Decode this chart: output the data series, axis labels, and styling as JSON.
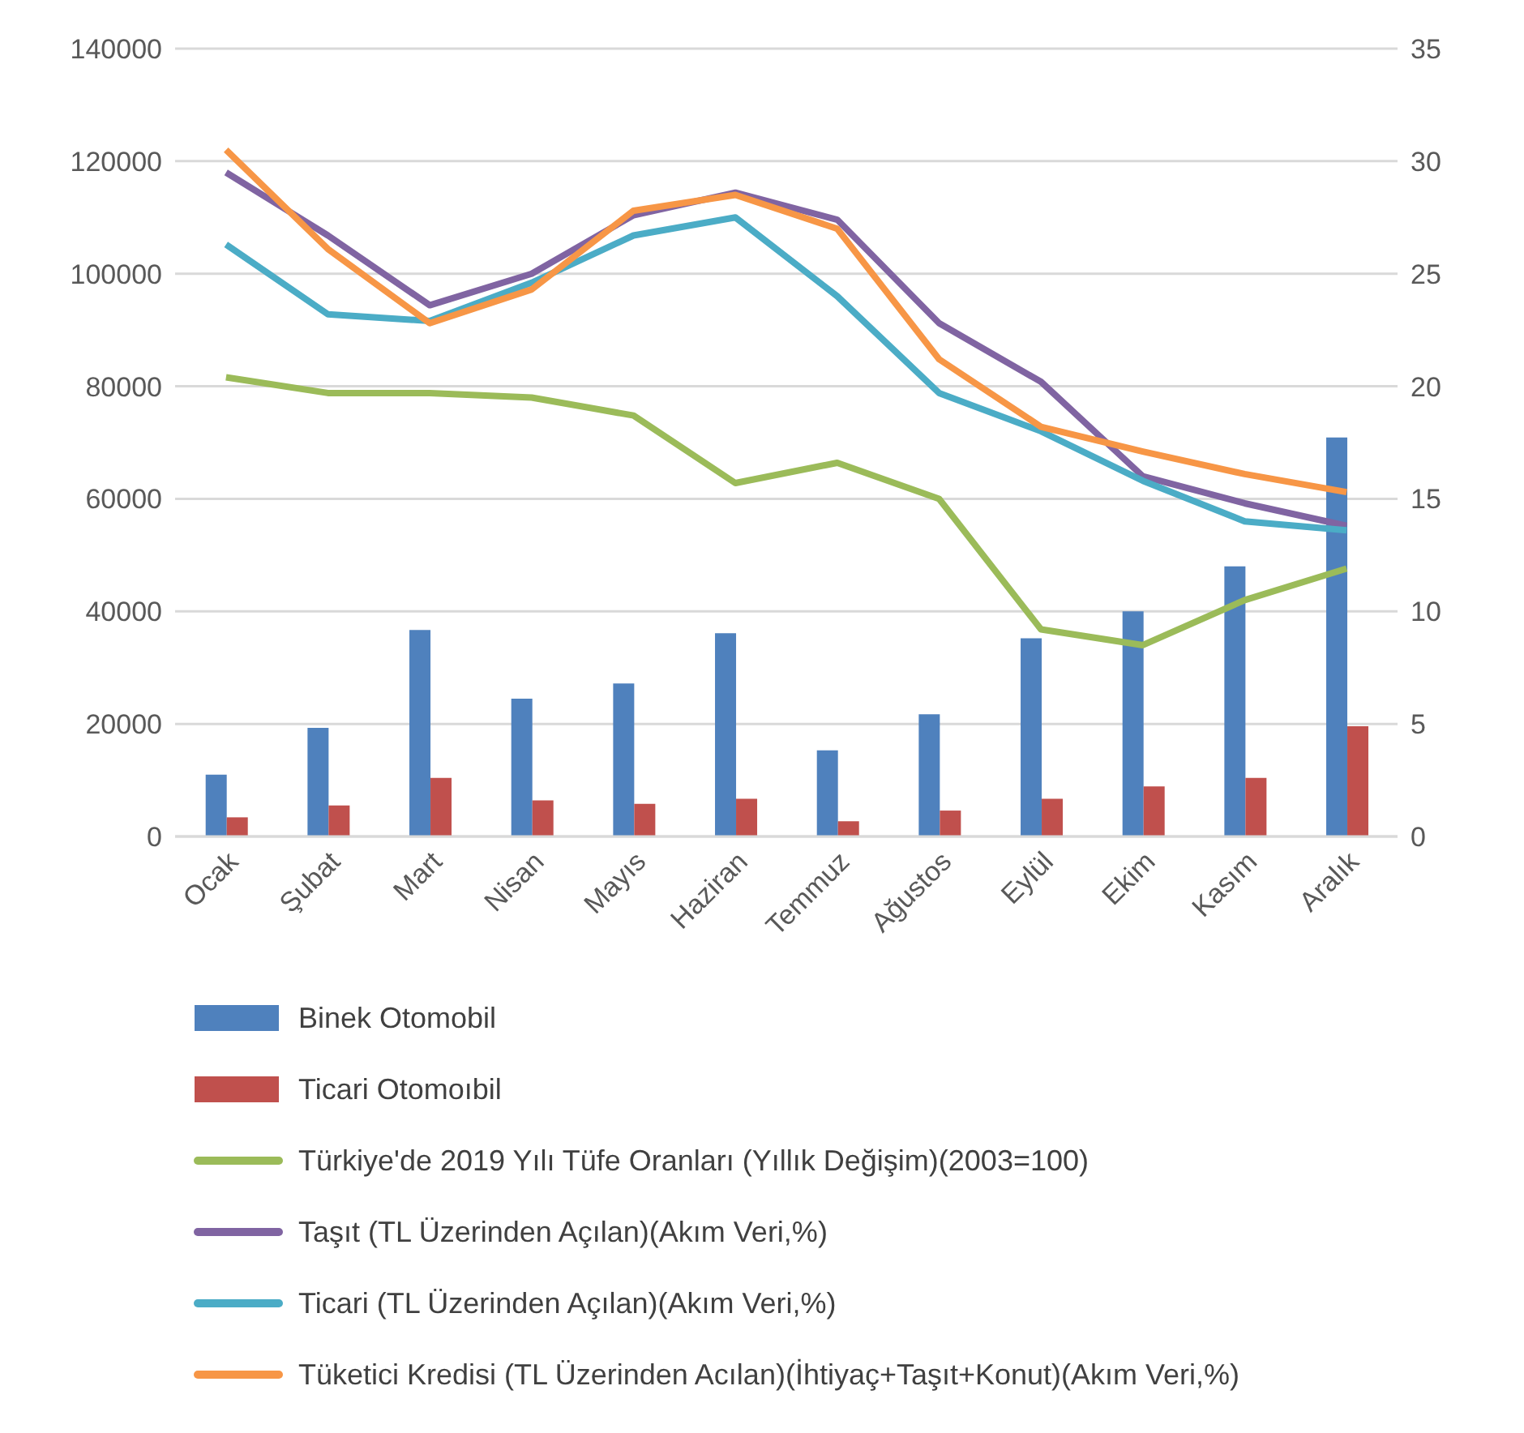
{
  "chart_data": {
    "type": "bar",
    "categories": [
      "Ocak",
      "Şubat",
      "Mart",
      "Nisan",
      "Mayıs",
      "Haziran",
      "Temmuz",
      "Ağustos",
      "Eylül",
      "Ekim",
      "Kasım",
      "Aralık"
    ],
    "ylim": [
      0,
      140000
    ],
    "yticks": [
      0,
      20000,
      40000,
      60000,
      80000,
      100000,
      120000,
      140000
    ],
    "y2lim": [
      0,
      35
    ],
    "y2ticks": [
      0,
      5,
      10,
      15,
      20,
      25,
      30,
      35
    ],
    "grid": "y",
    "legend": "bottom",
    "series": [
      {
        "name": "Binek Otomobil",
        "color": "#4f81bd",
        "values": [
          11000,
          19300,
          36700,
          24500,
          27200,
          36100,
          15300,
          21700,
          35200,
          40000,
          48000,
          70900
        ]
      },
      {
        "name": "Ticari Otomoıbil",
        "color": "#c0504d",
        "values": [
          3400,
          5500,
          10400,
          6400,
          5800,
          6700,
          2700,
          4600,
          6700,
          8900,
          10400,
          19600
        ]
      },
      {
        "name": "Türkiye'de 2019 Yılı Tüfe Oranları (Yıllık Değişim)(2003=100)",
        "type": "line",
        "axis": "y2",
        "color": "#9bbb59",
        "values": [
          20.4,
          19.7,
          19.7,
          19.5,
          18.7,
          15.7,
          16.6,
          15.0,
          9.2,
          8.5,
          10.5,
          11.9
        ]
      },
      {
        "name": "Taşıt (TL Üzerinden Açılan)(Akım Veri,%)",
        "type": "line",
        "axis": "y2",
        "color": "#8064a2",
        "values": [
          29.5,
          26.7,
          23.6,
          25.0,
          27.6,
          28.6,
          27.4,
          22.8,
          20.2,
          16.0,
          14.8,
          13.8
        ]
      },
      {
        "name": "Ticari (TL Üzerinden Açılan)(Akım Veri,%)",
        "type": "line",
        "axis": "y2",
        "color": "#4bacc6",
        "values": [
          26.3,
          23.2,
          22.9,
          24.6,
          26.7,
          27.5,
          24.0,
          19.7,
          18.0,
          15.8,
          14.0,
          13.6
        ]
      },
      {
        "name": "Tüketici Kredisi (TL Üzerinden Acılan)(İhtiyaç+Taşıt+Konut)(Akım Veri,%)",
        "type": "line",
        "axis": "y2",
        "color": "#f79646",
        "values": [
          30.5,
          26.1,
          22.8,
          24.3,
          27.8,
          28.5,
          27.0,
          21.2,
          18.2,
          17.1,
          16.1,
          15.3
        ]
      }
    ]
  }
}
